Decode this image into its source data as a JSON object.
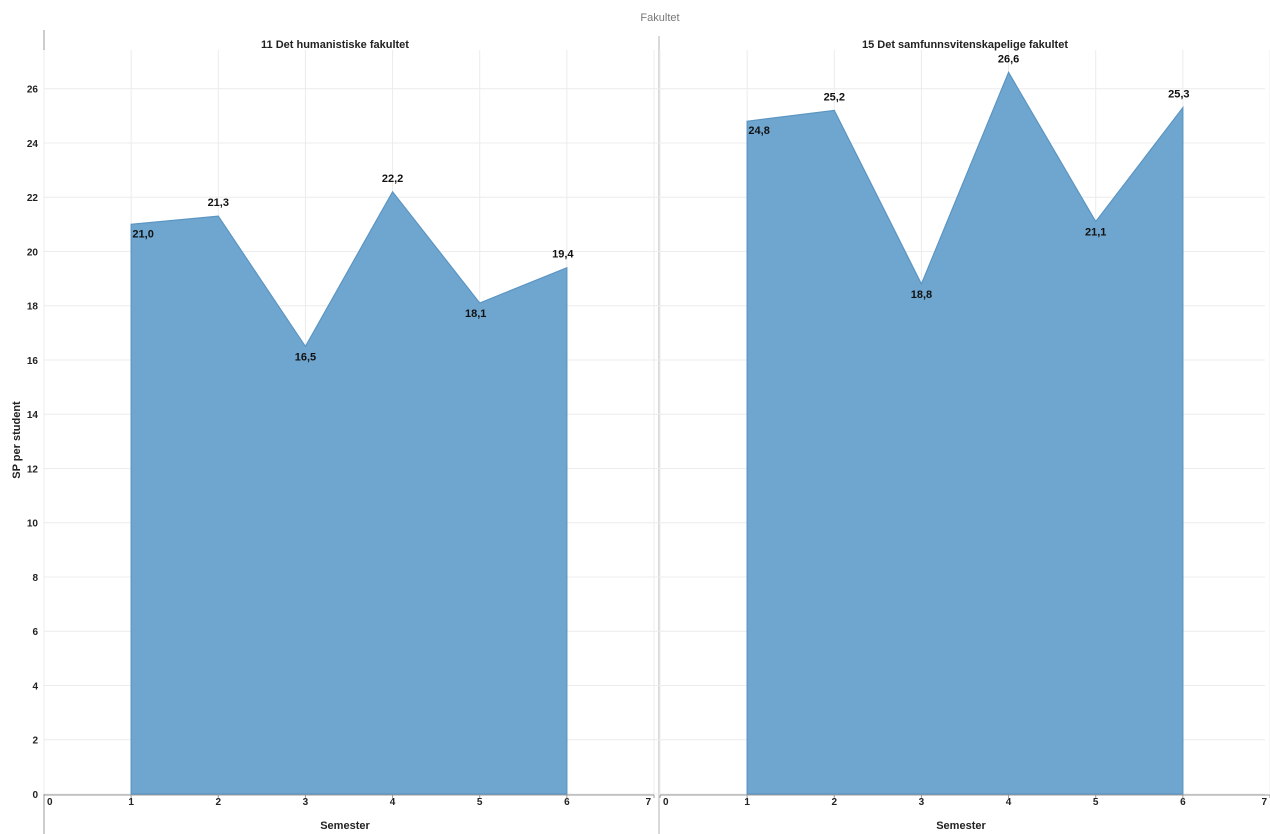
{
  "header_partial": "",
  "chart_data": {
    "type": "area",
    "facet_header": "Fakultet",
    "ylabel": "SP per student",
    "xlabel": "Semester",
    "ylim": [
      0,
      27.5
    ],
    "yticks": [
      0,
      2,
      4,
      6,
      8,
      10,
      12,
      14,
      16,
      18,
      20,
      22,
      24,
      26
    ],
    "xlim": [
      0,
      7
    ],
    "xticks": [
      0,
      1,
      2,
      3,
      4,
      5,
      6,
      7
    ],
    "grid": true,
    "color": "#6fa6cf",
    "panels": [
      {
        "title": "11 Det humanistiske fakultet",
        "x": [
          1,
          2,
          3,
          4,
          5,
          6
        ],
        "values": [
          21.0,
          21.3,
          16.5,
          22.2,
          18.1,
          19.4
        ],
        "labels": [
          "21,0",
          "21,3",
          "16,5",
          "22,2",
          "18,1",
          "19,4"
        ]
      },
      {
        "title": "15 Det samfunnsvitenskapelige fakultet",
        "x": [
          1,
          2,
          3,
          4,
          5,
          6
        ],
        "values": [
          24.8,
          25.2,
          18.8,
          26.6,
          21.1,
          25.3
        ],
        "labels": [
          "24,8",
          "25,2",
          "18,8",
          "26,6",
          "21,1",
          "25,3"
        ]
      }
    ]
  }
}
